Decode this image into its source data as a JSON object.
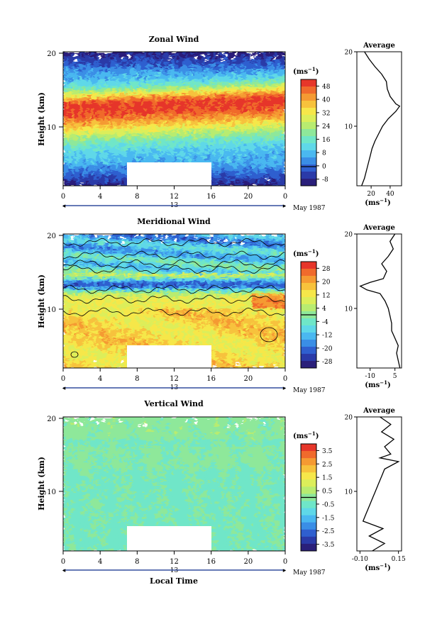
{
  "colors": {
    "scale": [
      "#2a1f7a",
      "#2a3aa8",
      "#2f5fcf",
      "#3a8ee6",
      "#4ab8f0",
      "#5fd8e8",
      "#6fe6c8",
      "#8ee89a",
      "#b8ec70",
      "#dcee5a",
      "#f6e74a",
      "#f7c23c",
      "#f59a32",
      "#f06a2c",
      "#e6362a"
    ],
    "blank": "#ffffff",
    "axis": "#000000"
  },
  "panels": [
    {
      "title": "Zonal Wind",
      "ylabel": "Height (km)",
      "yticks": [
        "20",
        "10"
      ],
      "xticks": [
        "0",
        "4",
        "8",
        "12",
        "16",
        "20",
        "0"
      ],
      "date_marker": "13",
      "date_label": "May 1987",
      "cb_unit": "(ms",
      "cb_unit_exp": "−1",
      "cb_unit_close": ")",
      "cb_ticks": [
        "48",
        "40",
        "32",
        "24",
        "16",
        "8",
        "0",
        "-8"
      ],
      "avg_title": "Average",
      "avg_yticks": [
        "20",
        "10"
      ],
      "avg_xticks": [
        "20",
        "40"
      ],
      "avg_xlabel": "(ms",
      "avg_xlabel_exp": "−1",
      "avg_xlabel_close": ")"
    },
    {
      "title": "Meridional Wind",
      "ylabel": "Height (km)",
      "yticks": [
        "20",
        "10"
      ],
      "xticks": [
        "0",
        "4",
        "8",
        "12",
        "16",
        "20",
        "0"
      ],
      "date_marker": "13",
      "date_label": "May 1987",
      "cb_unit": "(ms",
      "cb_unit_exp": "−1",
      "cb_unit_close": ")",
      "cb_ticks": [
        "28",
        "20",
        "12",
        "4",
        "-4",
        "-12",
        "-20",
        "-28"
      ],
      "avg_title": "Average",
      "avg_yticks": [
        "20",
        "10"
      ],
      "avg_xticks": [
        "-10",
        "5"
      ],
      "avg_xlabel": "(ms",
      "avg_xlabel_exp": "−1",
      "avg_xlabel_close": ")"
    },
    {
      "title": "Vertical Wind",
      "ylabel": "Height (km)",
      "yticks": [
        "20",
        "10"
      ],
      "xticks": [
        "0",
        "4",
        "8",
        "12",
        "16",
        "20",
        "0"
      ],
      "date_marker": "13",
      "date_label": "May 1987",
      "xlabel": "Local Time",
      "cb_unit": "(ms",
      "cb_unit_exp": "−1",
      "cb_unit_close": ")",
      "cb_ticks": [
        "3.5",
        "2.5",
        "1.5",
        "0.5",
        "-0.5",
        "-1.5",
        "-2.5",
        "-3.5"
      ],
      "avg_title": "Average",
      "avg_yticks": [
        "20",
        "10"
      ],
      "avg_xticks": [
        "-0.10",
        "0.15"
      ],
      "avg_xlabel": "(ms",
      "avg_xlabel_exp": "−1",
      "avg_xlabel_close": ")"
    }
  ],
  "chart_data": [
    {
      "type": "heatmap",
      "title": "Zonal Wind",
      "xlabel": "",
      "ylabel": "Height (km)",
      "xlim": [
        0,
        24
      ],
      "ylim": [
        2,
        20
      ],
      "colorbar_unit": "ms-1",
      "colorbar_levels": [
        -8,
        0,
        8,
        16,
        24,
        32,
        40,
        48
      ],
      "jet_height_km": [
        12.4,
        12.6,
        12.8,
        13.0,
        13.2,
        13.4,
        13.5
      ],
      "jet_time_h": [
        0,
        4,
        8,
        12,
        16,
        20,
        24
      ],
      "data_gap": {
        "time_h": [
          7,
          16
        ],
        "height_km": [
          2,
          5
        ]
      },
      "average_profile": {
        "height_km": [
          2,
          3,
          4,
          5,
          6,
          7,
          8,
          9,
          10,
          11,
          12,
          12.7,
          13,
          14,
          15,
          16,
          17,
          18,
          19,
          20
        ],
        "value": [
          10,
          13,
          15,
          17,
          19,
          21,
          24,
          28,
          32,
          38,
          46,
          50,
          46,
          40,
          37,
          36,
          31,
          24,
          18,
          13
        ]
      },
      "average_xlim": [
        5,
        52
      ]
    },
    {
      "type": "heatmap",
      "title": "Meridional Wind",
      "xlabel": "",
      "ylabel": "Height (km)",
      "xlim": [
        0,
        24
      ],
      "ylim": [
        2,
        20
      ],
      "colorbar_unit": "ms-1",
      "colorbar_levels": [
        -28,
        -20,
        -12,
        -4,
        4,
        12,
        20,
        28
      ],
      "minimum_height_km": 13.2,
      "data_gap": {
        "time_h": [
          7,
          16
        ],
        "height_km": [
          2,
          4
        ]
      },
      "average_profile": {
        "height_km": [
          2,
          3,
          4,
          5,
          6,
          7,
          8,
          9,
          10,
          11,
          12,
          12.5,
          13,
          13.5,
          14,
          15,
          16,
          17,
          18,
          19,
          20
        ],
        "value": [
          8,
          7,
          6,
          7,
          5,
          3,
          3,
          2,
          1,
          -1,
          -4,
          -12,
          -16,
          -10,
          -2,
          0,
          -3,
          1,
          4,
          2,
          5
        ]
      },
      "average_xlim": [
        -18,
        9
      ]
    },
    {
      "type": "heatmap",
      "title": "Vertical Wind",
      "xlabel": "Local Time",
      "ylabel": "Height (km)",
      "xlim": [
        0,
        24
      ],
      "ylim": [
        2,
        20
      ],
      "colorbar_unit": "ms-1",
      "colorbar_levels": [
        -3.5,
        -2.5,
        -1.5,
        -0.5,
        0.5,
        1.5,
        2.5,
        3.5
      ],
      "data_gap": {
        "time_h": [
          7,
          16
        ],
        "height_km": [
          2,
          5
        ]
      },
      "average_profile": {
        "height_km": [
          2,
          3,
          4,
          5,
          6,
          7,
          8,
          9,
          10,
          11,
          12,
          13,
          14,
          14.5,
          15,
          16,
          17,
          18,
          19,
          20
        ],
        "value": [
          -0.02,
          0.06,
          -0.04,
          0.05,
          -0.08,
          -0.06,
          -0.04,
          -0.02,
          0.0,
          0.02,
          0.04,
          0.06,
          0.15,
          0.03,
          0.1,
          0.06,
          0.12,
          0.04,
          0.1,
          0.03
        ]
      },
      "average_xlim": [
        -0.12,
        0.17
      ]
    }
  ]
}
